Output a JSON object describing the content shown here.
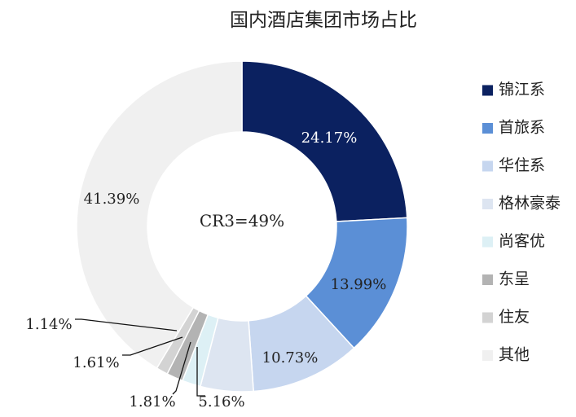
{
  "chart_data": {
    "type": "pie",
    "variant": "donut",
    "title": "国内酒店集团市场占比",
    "center_label": "CR3=49%",
    "unit": "%",
    "legend_position": "right",
    "slices": [
      {
        "name": "锦江系",
        "value": 24.17,
        "label": "24.17%",
        "color": "#0b2160",
        "label_color": "#ffffff"
      },
      {
        "name": "首旅系",
        "value": 13.99,
        "label": "13.99%",
        "color": "#5b8fd6",
        "label_color": "#222222"
      },
      {
        "name": "华住系",
        "value": 10.73,
        "label": "10.73%",
        "color": "#c6d6ef",
        "label_color": "#222222"
      },
      {
        "name": "格林豪泰",
        "value": 5.16,
        "label": "5.16%",
        "color": "#dde5f1",
        "label_color": "#222222"
      },
      {
        "name": "尚客优",
        "value": 1.81,
        "label": "1.81%",
        "color": "#ddf0f5",
        "label_color": "#222222"
      },
      {
        "name": "东呈",
        "value": 1.61,
        "label": "1.61%",
        "color": "#b3b3b3",
        "label_color": "#222222"
      },
      {
        "name": "住友",
        "value": 1.14,
        "label": "1.14%",
        "color": "#d3d3d3",
        "label_color": "#222222"
      },
      {
        "name": "其他",
        "value": 41.39,
        "label": "41.39%",
        "color": "#f0f0f0",
        "label_color": "#222222"
      }
    ]
  }
}
